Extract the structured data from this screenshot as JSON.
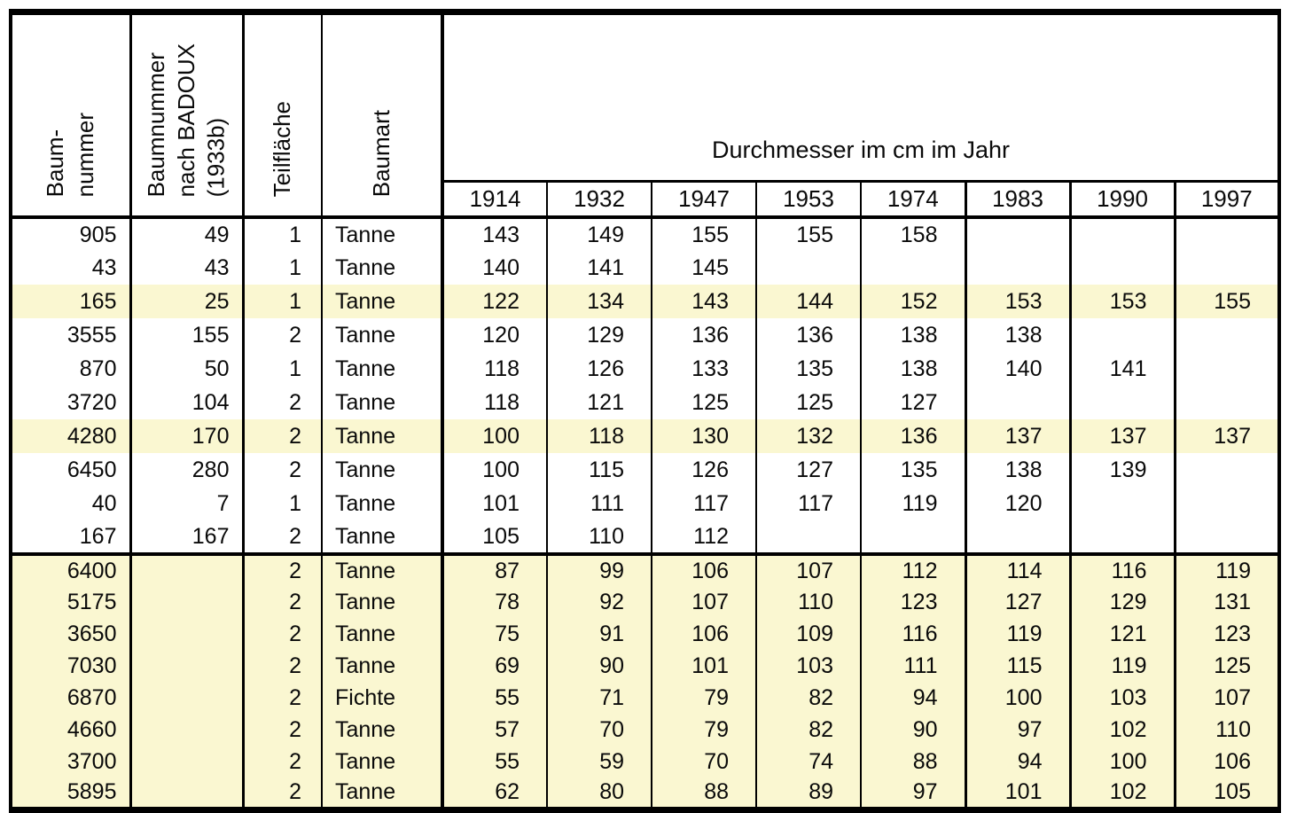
{
  "table": {
    "rotated_headers": [
      [
        "Baum-",
        "nummer"
      ],
      [
        "Baumnummer",
        "nach BADOUX",
        "(1933b)"
      ],
      [
        "Teilfläche"
      ],
      [
        "Baumart"
      ]
    ],
    "span_header": "Durchmesser im cm im Jahr",
    "year_headers": [
      "1914",
      "1932",
      "1947",
      "1953",
      "1974",
      "1983",
      "1990",
      "1997"
    ],
    "rows": [
      {
        "baumnummer": "905",
        "badoux": "49",
        "teilflaeche": "1",
        "baumart": "Tanne",
        "values": [
          "143",
          "149",
          "155",
          "155",
          "158",
          "",
          "",
          ""
        ],
        "highlight": false
      },
      {
        "baumnummer": "43",
        "badoux": "43",
        "teilflaeche": "1",
        "baumart": "Tanne",
        "values": [
          "140",
          "141",
          "145",
          "",
          "",
          "",
          "",
          ""
        ],
        "highlight": false
      },
      {
        "baumnummer": "165",
        "badoux": "25",
        "teilflaeche": "1",
        "baumart": "Tanne",
        "values": [
          "122",
          "134",
          "143",
          "144",
          "152",
          "153",
          "153",
          "155"
        ],
        "highlight": true
      },
      {
        "baumnummer": "3555",
        "badoux": "155",
        "teilflaeche": "2",
        "baumart": "Tanne",
        "values": [
          "120",
          "129",
          "136",
          "136",
          "138",
          "138",
          "",
          ""
        ],
        "highlight": false
      },
      {
        "baumnummer": "870",
        "badoux": "50",
        "teilflaeche": "1",
        "baumart": "Tanne",
        "values": [
          "118",
          "126",
          "133",
          "135",
          "138",
          "140",
          "141",
          ""
        ],
        "highlight": false
      },
      {
        "baumnummer": "3720",
        "badoux": "104",
        "teilflaeche": "2",
        "baumart": "Tanne",
        "values": [
          "118",
          "121",
          "125",
          "125",
          "127",
          "",
          "",
          ""
        ],
        "highlight": false
      },
      {
        "baumnummer": "4280",
        "badoux": "170",
        "teilflaeche": "2",
        "baumart": "Tanne",
        "values": [
          "100",
          "118",
          "130",
          "132",
          "136",
          "137",
          "137",
          "137"
        ],
        "highlight": true
      },
      {
        "baumnummer": "6450",
        "badoux": "280",
        "teilflaeche": "2",
        "baumart": "Tanne",
        "values": [
          "100",
          "115",
          "126",
          "127",
          "135",
          "138",
          "139",
          ""
        ],
        "highlight": false
      },
      {
        "baumnummer": "40",
        "badoux": "7",
        "teilflaeche": "1",
        "baumart": "Tanne",
        "values": [
          "101",
          "111",
          "117",
          "117",
          "119",
          "120",
          "",
          ""
        ],
        "highlight": false
      },
      {
        "baumnummer": "167",
        "badoux": "167",
        "teilflaeche": "2",
        "baumart": "Tanne",
        "values": [
          "105",
          "110",
          "112",
          "",
          "",
          "",
          "",
          ""
        ],
        "highlight": false
      },
      {
        "baumnummer": "6400",
        "badoux": "",
        "teilflaeche": "2",
        "baumart": "Tanne",
        "values": [
          "87",
          "99",
          "106",
          "107",
          "112",
          "114",
          "116",
          "119"
        ],
        "highlight": true
      },
      {
        "baumnummer": "5175",
        "badoux": "",
        "teilflaeche": "2",
        "baumart": "Tanne",
        "values": [
          "78",
          "92",
          "107",
          "110",
          "123",
          "127",
          "129",
          "131"
        ],
        "highlight": true
      },
      {
        "baumnummer": "3650",
        "badoux": "",
        "teilflaeche": "2",
        "baumart": "Tanne",
        "values": [
          "75",
          "91",
          "106",
          "109",
          "116",
          "119",
          "121",
          "123"
        ],
        "highlight": true
      },
      {
        "baumnummer": "7030",
        "badoux": "",
        "teilflaeche": "2",
        "baumart": "Tanne",
        "values": [
          "69",
          "90",
          "101",
          "103",
          "111",
          "115",
          "119",
          "125"
        ],
        "highlight": true
      },
      {
        "baumnummer": "6870",
        "badoux": "",
        "teilflaeche": "2",
        "baumart": "Fichte",
        "values": [
          "55",
          "71",
          "79",
          "82",
          "94",
          "100",
          "103",
          "107"
        ],
        "highlight": true
      },
      {
        "baumnummer": "4660",
        "badoux": "",
        "teilflaeche": "2",
        "baumart": "Tanne",
        "values": [
          "57",
          "70",
          "79",
          "82",
          "90",
          "97",
          "102",
          "110"
        ],
        "highlight": true
      },
      {
        "baumnummer": "3700",
        "badoux": "",
        "teilflaeche": "2",
        "baumart": "Tanne",
        "values": [
          "55",
          "59",
          "70",
          "74",
          "88",
          "94",
          "100",
          "106"
        ],
        "highlight": true
      },
      {
        "baumnummer": "5895",
        "badoux": "",
        "teilflaeche": "2",
        "baumart": "Tanne",
        "values": [
          "62",
          "80",
          "88",
          "89",
          "97",
          "101",
          "102",
          "105"
        ],
        "highlight": true
      }
    ]
  },
  "colors": {
    "highlight": "#FAF7D1",
    "border": "#000000",
    "text": "#0A0A0A"
  }
}
